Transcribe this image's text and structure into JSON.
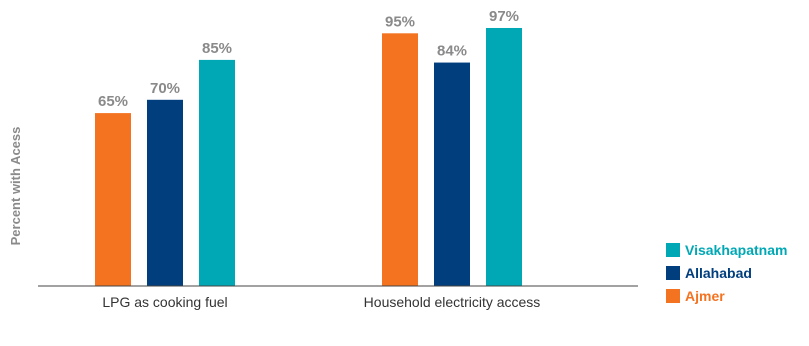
{
  "chart_data": {
    "type": "bar",
    "categories": [
      "LPG as cooking fuel",
      "Household electricity access"
    ],
    "series": [
      {
        "name": "Ajmer",
        "values": [
          65,
          95
        ],
        "color": "#f47321"
      },
      {
        "name": "Allahabad",
        "values": [
          70,
          84
        ],
        "color": "#003e7e"
      },
      {
        "name": "Visakhapatnam",
        "values": [
          85,
          97
        ],
        "color": "#00a8b5"
      }
    ],
    "value_suffix": "%",
    "title": "",
    "xlabel": "",
    "ylabel": "Percent with Acess",
    "ylim": [
      0,
      100
    ],
    "grid": false,
    "legend": {
      "placement": "right",
      "order": [
        "Visakhapatnam",
        "Allahabad",
        "Ajmer"
      ]
    }
  }
}
